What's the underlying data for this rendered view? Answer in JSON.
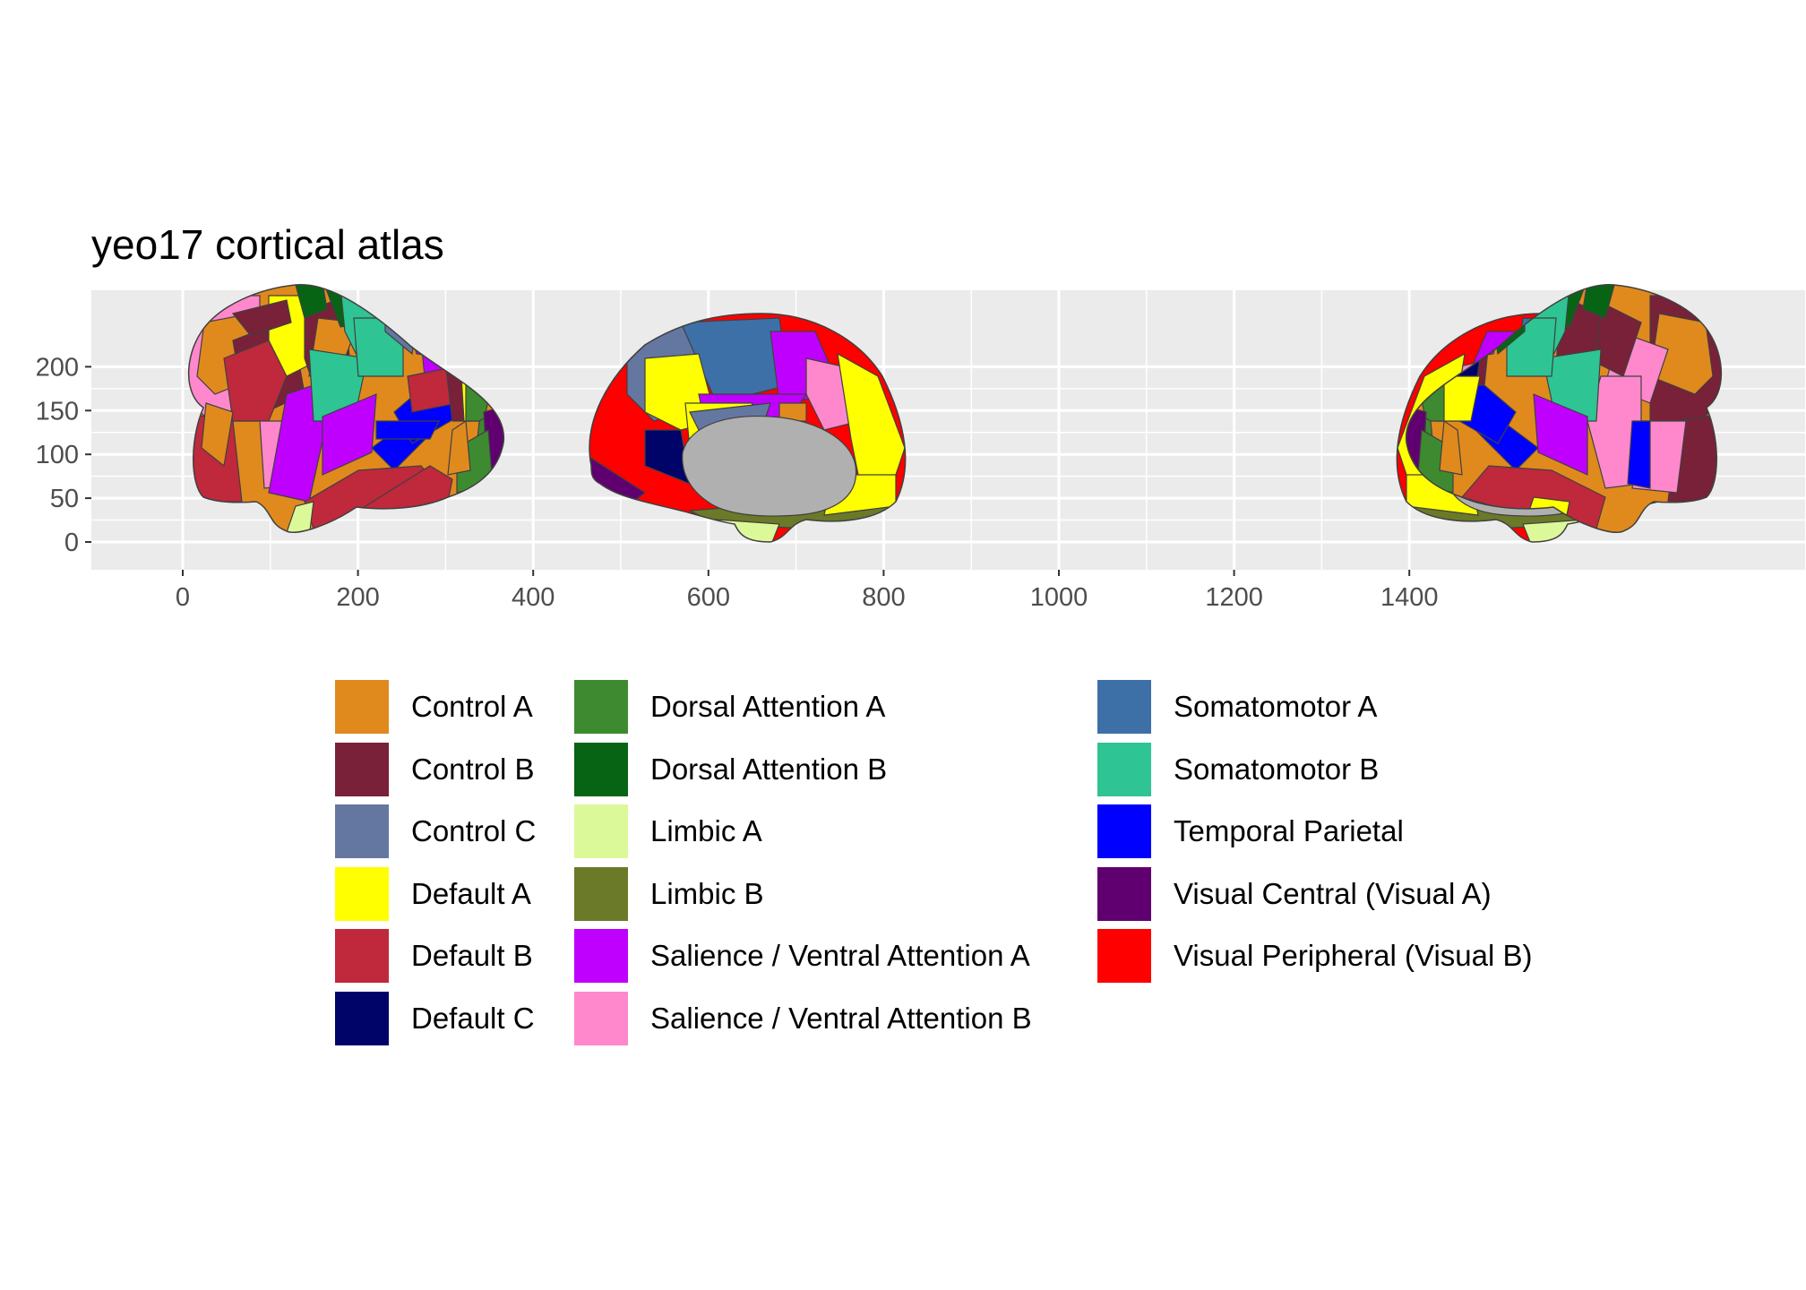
{
  "chart_data": {
    "type": "other",
    "title": "yeo17 cortical atlas",
    "xlabel": "",
    "ylabel": "",
    "xlim": [
      -83,
      1470
    ],
    "ylim": [
      -24,
      232
    ],
    "x_ticks": [
      "0",
      "200",
      "400",
      "600",
      "800",
      "1000",
      "1200",
      "1400"
    ],
    "y_ticks": [
      "200",
      "150",
      "100",
      "50",
      "0"
    ],
    "grid": true,
    "legend_position": "bottom",
    "views": [
      {
        "name": "lateral-left",
        "x_range": [
          0,
          290
        ],
        "y_range": [
          -2,
          205
        ]
      },
      {
        "name": "medial-left",
        "x_range": [
          370,
          670
        ],
        "y_range": [
          -2,
          195
        ]
      },
      {
        "name": "medial-right",
        "x_range": [
          735,
          1035
        ],
        "y_range": [
          -2,
          195
        ]
      },
      {
        "name": "lateral-right",
        "x_range": [
          1115,
          1405
        ],
        "y_range": [
          -2,
          205
        ]
      }
    ],
    "series": [
      {
        "name": "Control A",
        "color": "#E08A1E"
      },
      {
        "name": "Control B",
        "color": "#782138"
      },
      {
        "name": "Control C",
        "color": "#6477A0"
      },
      {
        "name": "Default A",
        "color": "#FFFF00"
      },
      {
        "name": "Default B",
        "color": "#C0283C"
      },
      {
        "name": "Default C",
        "color": "#000468"
      },
      {
        "name": "Dorsal Attention A",
        "color": "#3E8A31"
      },
      {
        "name": "Dorsal Attention B",
        "color": "#086415"
      },
      {
        "name": "Limbic A",
        "color": "#DCF99A"
      },
      {
        "name": "Limbic B",
        "color": "#6A7A28"
      },
      {
        "name": "Salience / Ventral Attention A",
        "color": "#C000FF"
      },
      {
        "name": "Salience / Ventral Attention B",
        "color": "#FF88CC"
      },
      {
        "name": "Somatomotor A",
        "color": "#3E70A8"
      },
      {
        "name": "Somatomotor B",
        "color": "#2EC493"
      },
      {
        "name": "Temporal Parietal",
        "color": "#0000FF"
      },
      {
        "name": "Visual Central (Visual A)",
        "color": "#600070"
      },
      {
        "name": "Visual Peripheral (Visual B)",
        "color": "#FF0000"
      }
    ],
    "medial_wall_color": "#B0B0B0"
  }
}
